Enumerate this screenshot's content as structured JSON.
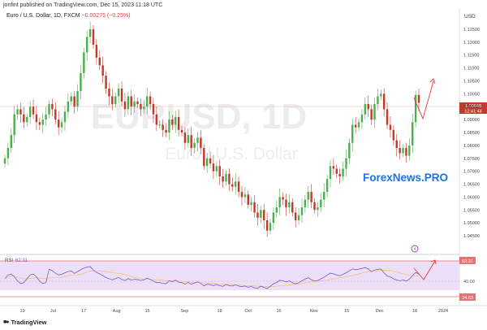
{
  "header": {
    "published": "jonfint published on TradingView.com, Dec 15, 2023 11:18 UTC",
    "symbol": "Euro / U.S. Dollar, 1D, FXCM",
    "change": "−0.00275 (−0.25%)",
    "currency": "USD"
  },
  "watermark": {
    "symbol": "EURUSD, 1D",
    "name": "Euro / U.S. Dollar"
  },
  "brand": "ForexNews.PRO",
  "footer": {
    "label": "TradingView"
  },
  "colors": {
    "up": "#4caf50",
    "down": "#c0392b",
    "rsi": "#7e57c2",
    "rsi_ma": "#f5c06a",
    "brand": "#1a73e8",
    "level": "#e57373"
  },
  "price_label": {
    "value": "1.09648",
    "countdown": "12:41:48"
  },
  "rsi": {
    "label": "RSI",
    "value": "62.31",
    "mid": "40.00",
    "low": "24.63"
  },
  "chart_data": {
    "type": "candlestick",
    "title": "Euro / U.S. Dollar, 1D, FXCM",
    "ylim": [
      1.04,
      1.13
    ],
    "y_ticks": [
      "1.12500",
      "1.12000",
      "1.11500",
      "1.11000",
      "1.10500",
      "1.10000",
      "1.09500",
      "1.09000",
      "1.08500",
      "1.08000",
      "1.07500",
      "1.07000",
      "1.06500",
      "1.06000",
      "1.05500",
      "1.05000",
      "1.04500"
    ],
    "x_ticks": [
      {
        "label": "19",
        "x": 0.04
      },
      {
        "label": "Jul",
        "x": 0.11
      },
      {
        "label": "17",
        "x": 0.18
      },
      {
        "label": "Aug",
        "x": 0.255
      },
      {
        "label": "15",
        "x": 0.325
      },
      {
        "label": "Sep",
        "x": 0.41
      },
      {
        "label": "18",
        "x": 0.49
      },
      {
        "label": "Oct",
        "x": 0.555
      },
      {
        "label": "16",
        "x": 0.625
      },
      {
        "label": "Nov",
        "x": 0.705
      },
      {
        "label": "15",
        "x": 0.78
      },
      {
        "label": "Dec",
        "x": 0.855
      },
      {
        "label": "18",
        "x": 0.935
      },
      {
        "label": "2024",
        "x": 1.0
      }
    ],
    "close": [
      1.075,
      1.079,
      1.084,
      1.092,
      1.094,
      1.092,
      1.089,
      1.091,
      1.095,
      1.092,
      1.089,
      1.088,
      1.09,
      1.092,
      1.096,
      1.094,
      1.09,
      1.087,
      1.089,
      1.093,
      1.097,
      1.099,
      1.095,
      1.101,
      1.108,
      1.116,
      1.122,
      1.125,
      1.119,
      1.114,
      1.111,
      1.107,
      1.102,
      1.099,
      1.096,
      1.099,
      1.102,
      1.097,
      1.094,
      1.099,
      1.095,
      1.097,
      1.096,
      1.094,
      1.095,
      1.099,
      1.096,
      1.092,
      1.088,
      1.088,
      1.086,
      1.085,
      1.09,
      1.088,
      1.091,
      1.086,
      1.085,
      1.081,
      1.084,
      1.079,
      1.081,
      1.083,
      1.079,
      1.072,
      1.075,
      1.073,
      1.07,
      1.072,
      1.068,
      1.066,
      1.069,
      1.065,
      1.064,
      1.066,
      1.062,
      1.06,
      1.061,
      1.057,
      1.058,
      1.054,
      1.052,
      1.055,
      1.051,
      1.047,
      1.05,
      1.054,
      1.056,
      1.06,
      1.059,
      1.056,
      1.058,
      1.054,
      1.051,
      1.053,
      1.056,
      1.059,
      1.062,
      1.058,
      1.055,
      1.056,
      1.059,
      1.062,
      1.067,
      1.072,
      1.071,
      1.069,
      1.068,
      1.071,
      1.075,
      1.081,
      1.088,
      1.087,
      1.089,
      1.092,
      1.096,
      1.094,
      1.09,
      1.096,
      1.099,
      1.1,
      1.094,
      1.088,
      1.086,
      1.082,
      1.079,
      1.077,
      1.079,
      1.076,
      1.08,
      1.089,
      1.0995,
      1.0965
    ]
  }
}
